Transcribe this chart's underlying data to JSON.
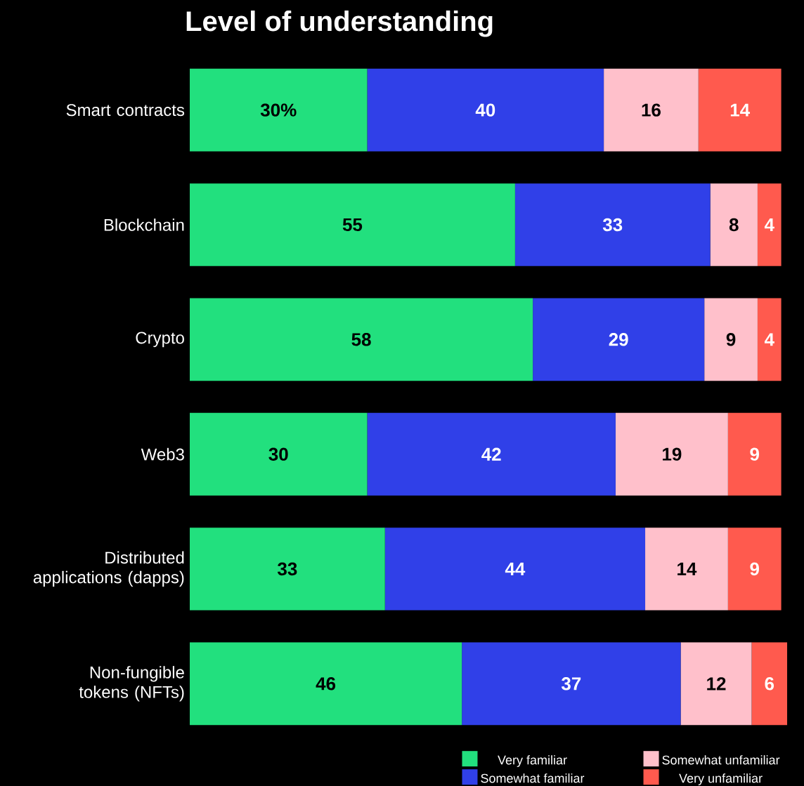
{
  "chart_data": {
    "type": "bar",
    "orientation": "horizontal",
    "stacked": true,
    "title": "Level of understanding",
    "categories": [
      "Smart contracts",
      "Blockchain",
      "Crypto",
      "Web3",
      "Distributed applications (dapps)",
      "Non-fungible tokens (NFTs)"
    ],
    "series": [
      {
        "name": "Very familiar",
        "color": "#22e07e",
        "values": [
          30,
          55,
          58,
          30,
          33,
          46
        ],
        "value_labels": [
          "30%",
          "55",
          "58",
          "30",
          "33",
          "46"
        ]
      },
      {
        "name": "Somewhat familiar",
        "color": "#3040e8",
        "values": [
          40,
          33,
          29,
          42,
          44,
          37
        ],
        "value_labels": [
          "40",
          "33",
          "29",
          "42",
          "44",
          "37"
        ]
      },
      {
        "name": "Somewhat unfamiliar",
        "color": "#ffc0cb",
        "values": [
          16,
          8,
          9,
          19,
          14,
          12
        ],
        "value_labels": [
          "16",
          "8",
          "9",
          "19",
          "14",
          "12"
        ]
      },
      {
        "name": "Very unfamiliar",
        "color": "#ff5a4e",
        "values": [
          14,
          4,
          4,
          9,
          9,
          6
        ],
        "value_labels": [
          "14",
          "4",
          "4",
          "9",
          "9",
          "6"
        ]
      }
    ],
    "legend": "bottom right",
    "tick_labels": "y"
  }
}
